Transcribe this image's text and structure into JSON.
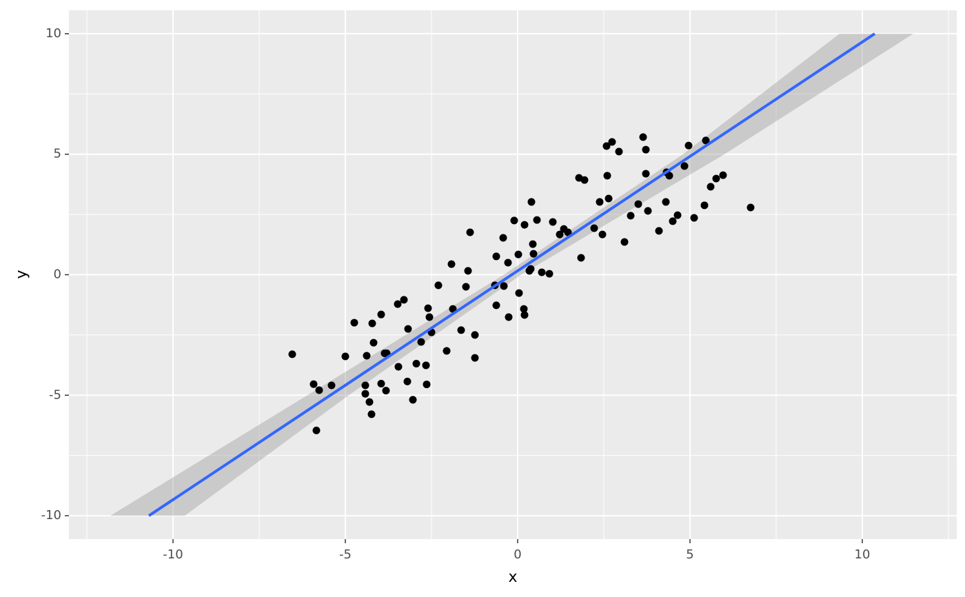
{
  "chart_data": {
    "type": "scatter",
    "x_label": "x",
    "y_label": "y",
    "xlim": [
      -13.02,
      12.74
    ],
    "ylim": [
      -10.97,
      10.97
    ],
    "xticks": [
      -10,
      -5,
      0,
      5,
      10
    ],
    "yticks": [
      -10,
      -5,
      0,
      5,
      10
    ],
    "minor_xticks": [
      -12.5,
      -7.5,
      -2.5,
      2.5,
      7.5,
      12.5
    ],
    "minor_yticks": [
      -7.5,
      -2.5,
      2.5,
      7.5
    ],
    "grid": true,
    "point_color": "#000000",
    "x": [
      -6.54,
      -5.92,
      -5.76,
      -5.84,
      -5.4,
      -5.0,
      -4.74,
      -4.22,
      -4.18,
      -4.42,
      -4.42,
      -4.38,
      -4.3,
      -4.24,
      -3.96,
      -3.96,
      -3.86,
      -3.8,
      -3.82,
      -3.48,
      -3.3,
      -3.46,
      -3.18,
      -3.2,
      -3.04,
      -2.94,
      -2.8,
      -2.66,
      -2.64,
      -2.6,
      -2.56,
      -2.5,
      -2.3,
      -2.06,
      -1.92,
      -1.88,
      -1.64,
      -1.5,
      -1.44,
      -1.38,
      -1.24,
      -1.24,
      -0.66,
      -0.62,
      -0.62,
      -0.42,
      -0.4,
      -0.28,
      -0.26,
      -0.1,
      0.02,
      0.04,
      0.18,
      0.2,
      0.2,
      0.34,
      0.38,
      0.4,
      0.44,
      0.46,
      0.56,
      0.7,
      0.92,
      1.02,
      1.22,
      1.34,
      1.46,
      1.78,
      1.84,
      1.94,
      2.22,
      2.38,
      2.46,
      2.58,
      2.6,
      2.64,
      2.74,
      2.94,
      3.1,
      3.28,
      3.5,
      3.64,
      3.72,
      3.72,
      3.78,
      4.1,
      4.3,
      4.32,
      4.4,
      4.5,
      4.64,
      4.84,
      4.96,
      5.12,
      5.42,
      5.46,
      5.6,
      5.76,
      5.96,
      6.76
    ],
    "y": [
      -3.3,
      -4.54,
      -4.79,
      -6.46,
      -4.59,
      -3.39,
      -1.99,
      -2.02,
      -2.82,
      -4.59,
      -4.94,
      -3.36,
      -5.28,
      -5.79,
      -1.65,
      -4.52,
      -3.26,
      -3.26,
      -4.81,
      -1.22,
      -1.04,
      -3.82,
      -2.25,
      -4.43,
      -5.19,
      -3.69,
      -2.79,
      -3.76,
      -4.55,
      -1.39,
      -1.76,
      -2.39,
      -0.44,
      -3.16,
      0.44,
      -1.42,
      -2.3,
      -0.5,
      0.16,
      1.76,
      -2.5,
      -3.45,
      -0.44,
      0.76,
      -1.27,
      1.53,
      -0.47,
      0.5,
      -1.76,
      2.25,
      0.84,
      -0.76,
      -1.42,
      -1.67,
      2.07,
      0.16,
      0.24,
      3.02,
      1.27,
      0.87,
      2.27,
      0.1,
      0.04,
      2.19,
      1.67,
      1.9,
      1.76,
      4.02,
      0.7,
      3.93,
      1.93,
      3.02,
      1.67,
      5.34,
      4.11,
      3.16,
      5.51,
      5.11,
      1.36,
      2.45,
      2.93,
      5.71,
      4.19,
      5.19,
      2.65,
      1.82,
      3.02,
      4.25,
      4.11,
      2.22,
      2.47,
      4.51,
      5.36,
      2.36,
      2.88,
      5.57,
      3.65,
      3.99,
      4.13,
      2.79
    ],
    "fit": {
      "color": "#3366ff",
      "x": [
        -10.7,
        10.36
      ],
      "y": [
        -10,
        10
      ]
    },
    "band": {
      "color": "#999999",
      "y": [
        -10,
        -5,
        0,
        5,
        10
      ],
      "xmin": [
        -11.82,
        -6.1,
        -0.4,
        4.8,
        9.34
      ],
      "xmax": [
        -9.66,
        -4.9,
        0.1,
        6.0,
        11.48
      ]
    }
  }
}
